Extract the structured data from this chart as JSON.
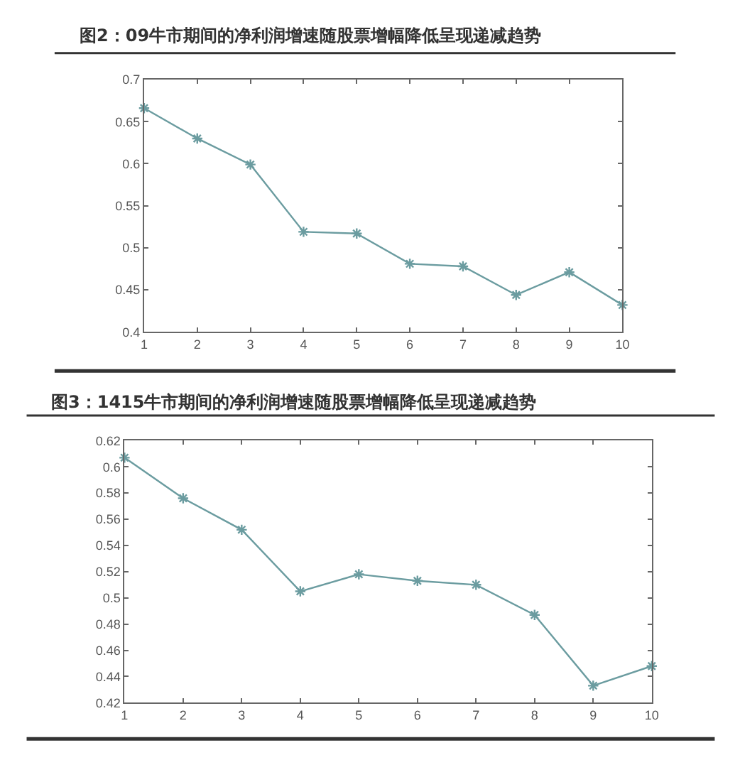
{
  "chart_data": [
    {
      "type": "line",
      "title": "图2：09牛市期间的净利润增速随股票增幅降低呈现递减趋势",
      "x": [
        1,
        2,
        3,
        4,
        5,
        6,
        7,
        8,
        9,
        10
      ],
      "series": [
        {
          "color": "#6b9ca0",
          "values": [
            0.666,
            0.63,
            0.599,
            0.519,
            0.517,
            0.481,
            0.478,
            0.444,
            0.471,
            0.432
          ]
        }
      ],
      "xlim": [
        1,
        10
      ],
      "xticks": [
        1,
        2,
        3,
        4,
        5,
        6,
        7,
        8,
        9,
        10
      ],
      "ylim": [
        0.4,
        0.7
      ],
      "yticks": [
        0.4,
        0.45,
        0.5,
        0.55,
        0.6,
        0.65,
        0.7
      ],
      "marker": "cross",
      "line_style": "solid"
    },
    {
      "type": "line",
      "title": "图3：1415牛市期间的净利润增速随股票增幅降低呈现递减趋势",
      "x": [
        1,
        2,
        3,
        4,
        5,
        6,
        7,
        8,
        9,
        10
      ],
      "series": [
        {
          "color": "#6b9ca0",
          "values": [
            0.607,
            0.576,
            0.552,
            0.505,
            0.518,
            0.513,
            0.51,
            0.487,
            0.433,
            0.448
          ]
        }
      ],
      "xlim": [
        1,
        10
      ],
      "xticks": [
        1,
        2,
        3,
        4,
        5,
        6,
        7,
        8,
        9,
        10
      ],
      "ylim": [
        0.42,
        0.62
      ],
      "yticks": [
        0.42,
        0.44,
        0.46,
        0.48,
        0.5,
        0.52,
        0.54,
        0.56,
        0.58,
        0.6,
        0.62
      ],
      "marker": "cross",
      "line_style": "solid"
    }
  ]
}
